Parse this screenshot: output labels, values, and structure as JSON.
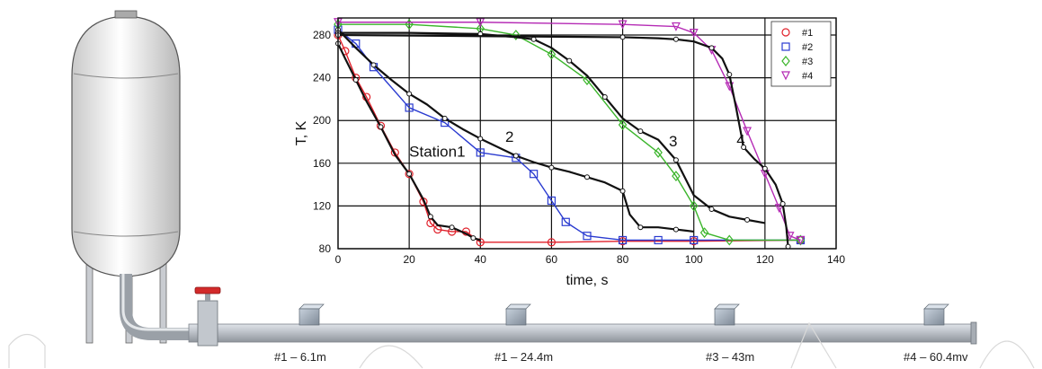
{
  "sensors": [
    {
      "label": "#1 – 6.1m"
    },
    {
      "label": "#1 – 24.4m"
    },
    {
      "label": "#3 – 43m"
    },
    {
      "label": "#4 – 60.4mv"
    }
  ],
  "chart_data": {
    "type": "line",
    "xlabel": "time, s",
    "ylabel": "T, K",
    "xlim": [
      0,
      140
    ],
    "ylim": [
      80,
      296
    ],
    "xticks": [
      0,
      20,
      40,
      60,
      80,
      100,
      120,
      140
    ],
    "yticks": [
      80,
      120,
      160,
      200,
      240,
      280
    ],
    "grid": true,
    "legend_position": "top-right",
    "annotations": [
      {
        "text": "Station1",
        "x": 20,
        "y": 166
      },
      {
        "text": "2",
        "x": 47,
        "y": 180
      },
      {
        "text": "3",
        "x": 93,
        "y": 176
      },
      {
        "text": "4",
        "x": 112,
        "y": 177
      }
    ],
    "colors": {
      "s1": "#e0202a",
      "s2": "#2a3bd0",
      "s3": "#3bb52b",
      "s4": "#b52bb5",
      "model": "#111111"
    },
    "series": [
      {
        "name": "#1",
        "marker": "circle",
        "color": "#e0202a",
        "x": [
          0,
          2,
          5,
          8,
          12,
          16,
          20,
          24,
          26,
          28,
          32,
          36,
          40,
          60,
          80,
          100,
          130
        ],
        "y": [
          280,
          265,
          240,
          222,
          195,
          170,
          150,
          124,
          104,
          98,
          96,
          96,
          86,
          86,
          87,
          87,
          88
        ]
      },
      {
        "name": "#2",
        "marker": "square",
        "color": "#2a3bd0",
        "x": [
          0,
          5,
          10,
          20,
          30,
          40,
          50,
          55,
          60,
          64,
          70,
          80,
          90,
          100,
          130
        ],
        "y": [
          285,
          272,
          250,
          212,
          198,
          170,
          165,
          150,
          125,
          105,
          92,
          88,
          88,
          88,
          88
        ]
      },
      {
        "name": "#3",
        "marker": "diamond",
        "color": "#3bb52b",
        "x": [
          0,
          20,
          40,
          50,
          60,
          70,
          80,
          90,
          95,
          100,
          103,
          110,
          130
        ],
        "y": [
          290,
          290,
          286,
          280,
          262,
          238,
          196,
          170,
          148,
          120,
          95,
          88,
          88
        ]
      },
      {
        "name": "#4",
        "marker": "triangle-down",
        "color": "#b52bb5",
        "x": [
          0,
          40,
          80,
          95,
          100,
          105,
          110,
          115,
          120,
          124,
          127,
          130
        ],
        "y": [
          292,
          292,
          290,
          288,
          282,
          266,
          232,
          190,
          150,
          118,
          92,
          88
        ]
      },
      {
        "name": "",
        "color": "#111111",
        "role": "model-1",
        "x": [
          0,
          2,
          5,
          8,
          12,
          16,
          20,
          24,
          26,
          28,
          32,
          36,
          38,
          40
        ],
        "y": [
          272,
          258,
          238,
          218,
          194,
          168,
          150,
          126,
          110,
          102,
          100,
          94,
          90,
          88
        ]
      },
      {
        "name": "",
        "color": "#111111",
        "role": "model-2",
        "x": [
          0,
          5,
          10,
          15,
          20,
          25,
          30,
          35,
          40,
          45,
          50,
          55,
          60,
          65,
          70,
          75,
          80,
          82,
          85,
          90,
          95,
          100
        ],
        "y": [
          285,
          268,
          252,
          238,
          225,
          215,
          202,
          192,
          183,
          175,
          167,
          161,
          156,
          152,
          147,
          142,
          134,
          112,
          100,
          100,
          98,
          96
        ]
      },
      {
        "name": "",
        "color": "#111111",
        "role": "model-3",
        "x": [
          0,
          20,
          40,
          50,
          55,
          60,
          65,
          70,
          75,
          80,
          85,
          90,
          95,
          100,
          105,
          110,
          115,
          120
        ],
        "y": [
          282,
          282,
          281,
          278,
          276,
          268,
          256,
          242,
          222,
          202,
          190,
          182,
          163,
          130,
          117,
          110,
          107,
          104
        ]
      },
      {
        "name": "",
        "color": "#111111",
        "role": "model-4",
        "x": [
          0,
          40,
          80,
          90,
          95,
          100,
          105,
          108,
          110,
          112,
          114,
          117,
          120,
          123,
          125,
          126,
          126.5
        ],
        "y": [
          280,
          279,
          278,
          277,
          276,
          274,
          268,
          258,
          243,
          210,
          175,
          164,
          155,
          140,
          122,
          100,
          82
        ]
      }
    ]
  }
}
